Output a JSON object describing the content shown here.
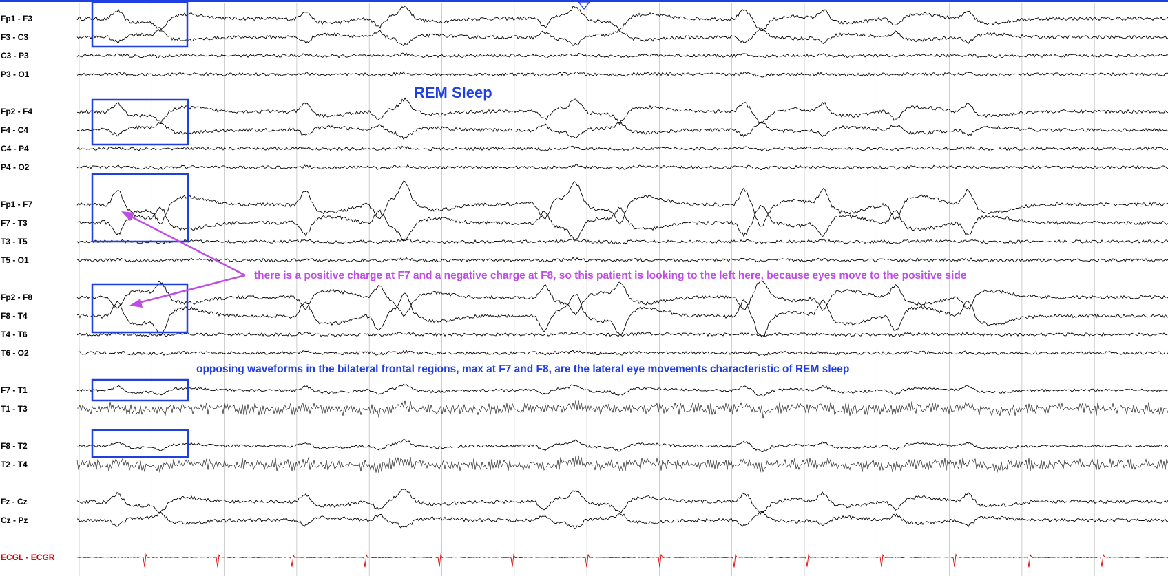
{
  "title": "REM Sleep",
  "annotations": {
    "arrow_note": "there is a positive charge at F7 and a negative charge at F8, so this patient is looking to the left here, because eyes move to the positive side",
    "summary_note": "opposing waveforms in the bilateral frontal regions, max at F7 and F8, are the lateral eye movements characteristic of REM sleep"
  },
  "channels": [
    {
      "label": "Fp1 - F3",
      "wave": "frontal",
      "group": 1
    },
    {
      "label": "F3 - C3",
      "wave": "central",
      "group": 1
    },
    {
      "label": "C3 - P3",
      "wave": "low",
      "group": 1
    },
    {
      "label": "P3 - O1",
      "wave": "low",
      "group": 1
    },
    {
      "label": "Fp2 - F4",
      "wave": "frontal",
      "group": 2
    },
    {
      "label": "F4 - C4",
      "wave": "central",
      "group": 2
    },
    {
      "label": "C4 - P4",
      "wave": "low",
      "group": 2
    },
    {
      "label": "P4 - O2",
      "wave": "low",
      "group": 2
    },
    {
      "label": "Fp1 - F7",
      "wave": "eye-pos",
      "group": 3
    },
    {
      "label": "F7 - T3",
      "wave": "eye-neg",
      "group": 3
    },
    {
      "label": "T3 - T5",
      "wave": "low",
      "group": 3
    },
    {
      "label": "T5 - O1",
      "wave": "low",
      "group": 3
    },
    {
      "label": "Fp2 - F8",
      "wave": "eye-neg",
      "group": 4
    },
    {
      "label": "F8 - T4",
      "wave": "eye-pos",
      "group": 4
    },
    {
      "label": "T4 - T6",
      "wave": "low",
      "group": 4
    },
    {
      "label": "T6 - O2",
      "wave": "low",
      "group": 4
    },
    {
      "label": "F7 - T1",
      "wave": "small",
      "group": 5
    },
    {
      "label": "T1 - T3",
      "wave": "muscle",
      "group": 5
    },
    {
      "label": "F8 - T2",
      "wave": "small",
      "group": 6
    },
    {
      "label": "T2 - T4",
      "wave": "muscle",
      "group": 6
    },
    {
      "label": "Fz - Cz",
      "wave": "frontal",
      "group": 7
    },
    {
      "label": "Cz - Pz",
      "wave": "central",
      "group": 7
    },
    {
      "label": "ECGL - ECGR",
      "wave": "ecg",
      "group": 8
    }
  ],
  "colors": {
    "trace": "#000000",
    "ecg": "#dd0000",
    "box": "#1f3fe0",
    "title": "#1f3fe0",
    "arrow": "#c04ce8",
    "grid": "#bbbbbb",
    "topbar": "#1f3fe0"
  }
}
